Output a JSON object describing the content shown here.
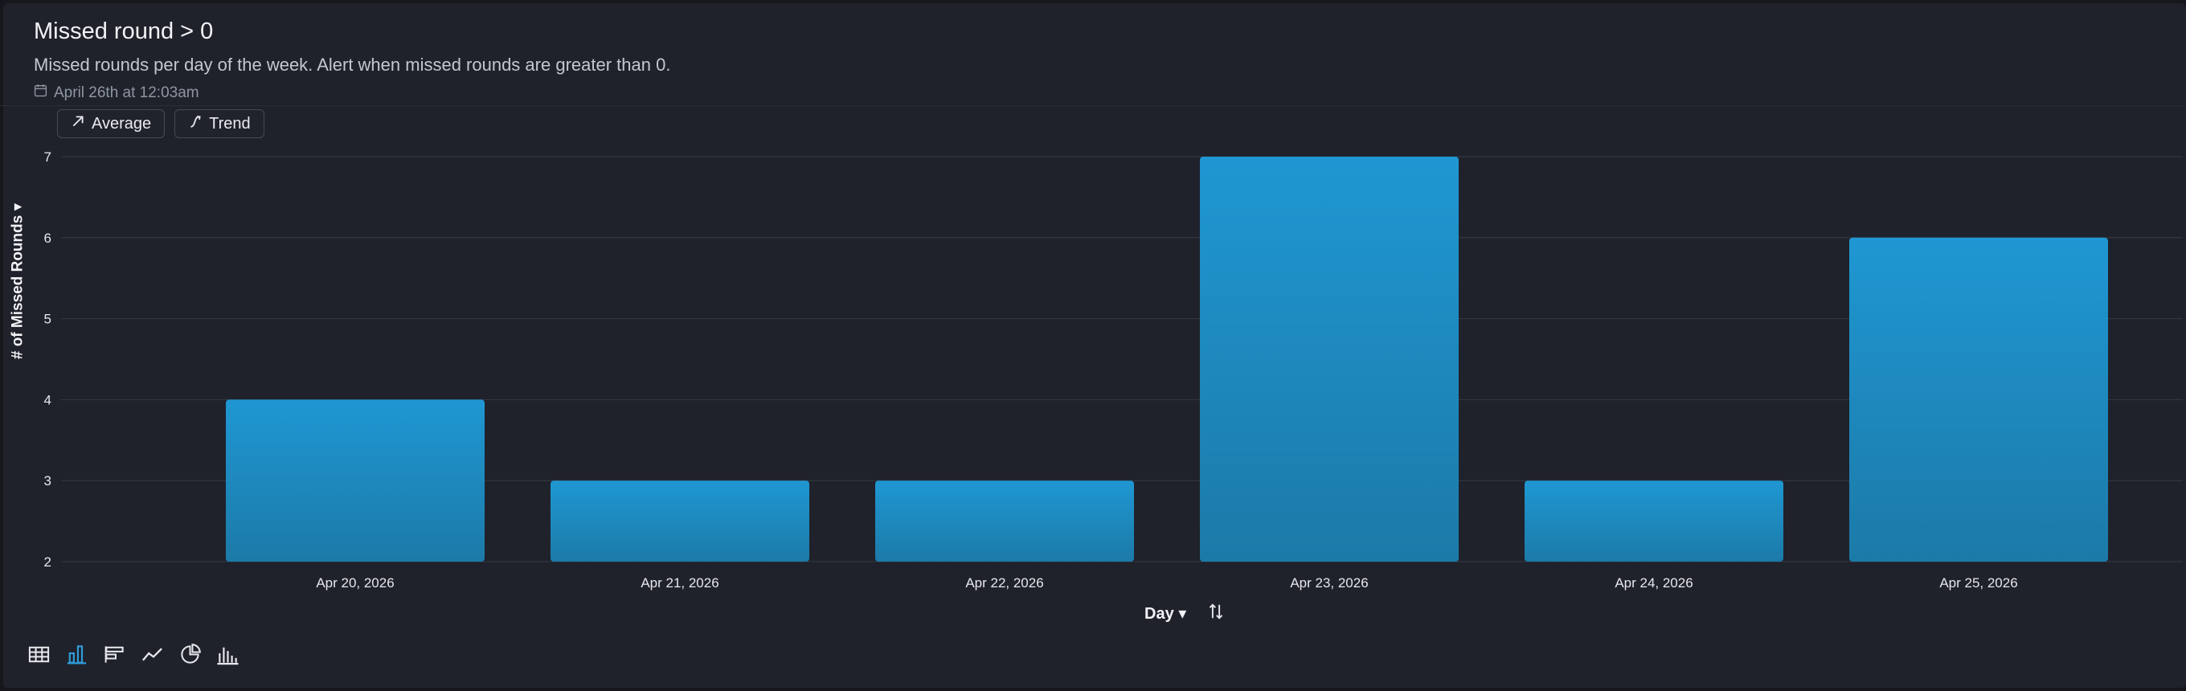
{
  "header": {
    "title": "Missed round > 0",
    "subtitle": "Missed rounds per day of the week. Alert when missed rounds are greater than 0.",
    "timestamp": "April 26th at 12:03am"
  },
  "toolbar": {
    "average_label": "Average",
    "trend_label": "Trend"
  },
  "axis": {
    "y_title": "# of Missed Rounds ▾",
    "x_title": "Day ▾"
  },
  "viz_switch": [
    "table-icon",
    "bar-chart-icon",
    "horizontal-bar-icon",
    "line-chart-icon",
    "pie-chart-icon",
    "histogram-icon"
  ],
  "colors": {
    "bar": "#1f97d2",
    "active_icon": "#2f9cd8"
  },
  "chart_data": {
    "type": "bar",
    "categories": [
      "Apr 20, 2026",
      "Apr 21, 2026",
      "Apr 22, 2026",
      "Apr 23, 2026",
      "Apr 24, 2026",
      "Apr 25, 2026"
    ],
    "values": [
      4,
      3,
      3,
      7,
      3,
      6
    ],
    "ylabel": "# of Missed Rounds",
    "xlabel": "Day",
    "ylim": [
      2,
      7
    ],
    "yticks": [
      2,
      3,
      4,
      5,
      6,
      7
    ],
    "grid": true
  }
}
